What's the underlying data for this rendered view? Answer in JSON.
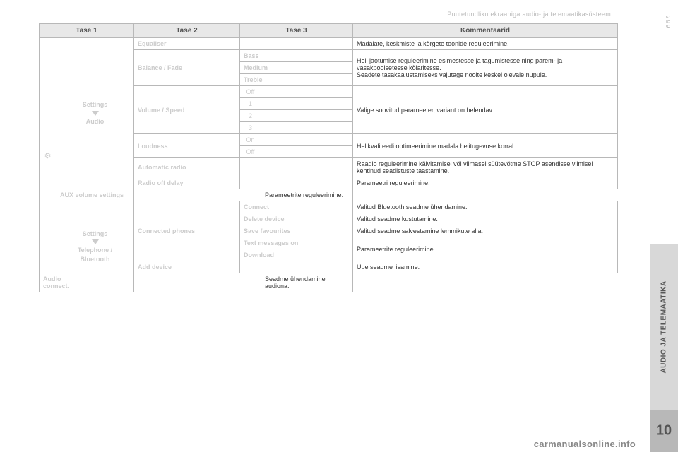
{
  "header": "Puutetundliku ekraaniga audio- ja telemaatikasüsteem",
  "columns": {
    "l1": "Tase 1",
    "l2": "Tase 2",
    "l3": "Tase 3",
    "comm": "Kommentaarid"
  },
  "groups": {
    "audio": {
      "label1": "Settings",
      "label2": "Audio"
    },
    "phone": {
      "label1": "Settings",
      "label2": "Telephone /",
      "label3": "Bluetooth"
    }
  },
  "rows": {
    "equaliser": {
      "l2": "Equaliser",
      "comm": "Madalate, keskmiste ja kõrgete toonide reguleerimine."
    },
    "balance": {
      "l2": "Balance / Fade",
      "l3a": "Bass",
      "l3b": "Medium",
      "l3c": "Treble",
      "comm": "Heli jaotumise reguleerimine esimestesse ja tagumistesse ning parem- ja vasakpoolsetesse kõlaritesse.\nSeadete tasakaalustamiseks vajutage noolte keskel olevale nupule."
    },
    "volspeed": {
      "l2": "Volume / Speed",
      "o0": "Off",
      "o1": "1",
      "o2": "2",
      "o3": "3",
      "comm": "Valige soovitud parameeter, variant on helendav."
    },
    "loudness": {
      "l2": "Loudness",
      "on": "On",
      "off": "Off",
      "comm": "Helikvaliteedi optimeerimine madala helitugevuse korral."
    },
    "autoradio": {
      "l2": "Automatic radio",
      "comm": "Raadio reguleerimine käivitamisel või viimasel süütevõtme STOP asendisse viimisel kehtinud seadistuste taastamine."
    },
    "radiodelay": {
      "l2": "Radio off delay",
      "comm": "Parameetri reguleerimine."
    },
    "auxvol": {
      "l2": "AUX volume settings",
      "comm": "Parameetrite reguleerimine."
    },
    "connphones": {
      "l2": "Connected phones",
      "c1": "Connect",
      "c1c": "Valitud Bluetooth seadme ühendamine.",
      "c2": "Delete device",
      "c2c": "Valitud seadme kustutamine.",
      "c3": "Save favourites",
      "c3c": "Valitud seadme salvestamine lemmikute alla.",
      "c4": "Text messages on",
      "c5": "Download",
      "c45c": "Parameetrite reguleerimine."
    },
    "adddev": {
      "l2": "Add device",
      "comm": "Uue seadme lisamine."
    },
    "audioconn": {
      "l2": "Audio connect.",
      "comm": "Seadme ühendamine audiona."
    }
  },
  "sidebar": {
    "section": "AUDIO JA TELEMAATIKA",
    "chapter": "10",
    "page": "299"
  },
  "watermark": "carmanualsonline.info"
}
